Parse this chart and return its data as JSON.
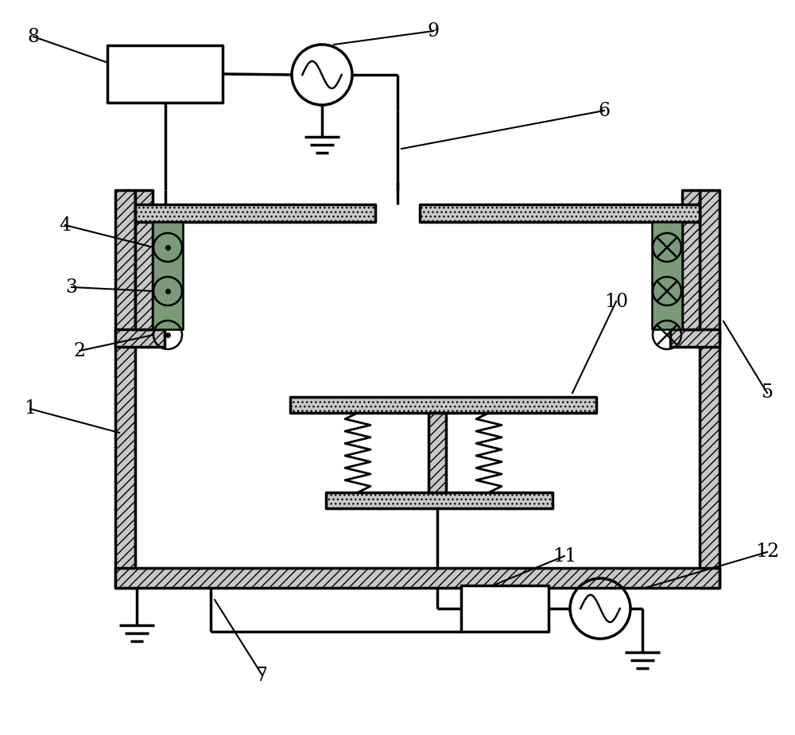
{
  "bg_color": "#ffffff",
  "gray_fill": "#c8c8c8",
  "green_fill": "#7a9a78",
  "lw_main": 2.5,
  "lw_thin": 1.8,
  "label_fs": 17
}
